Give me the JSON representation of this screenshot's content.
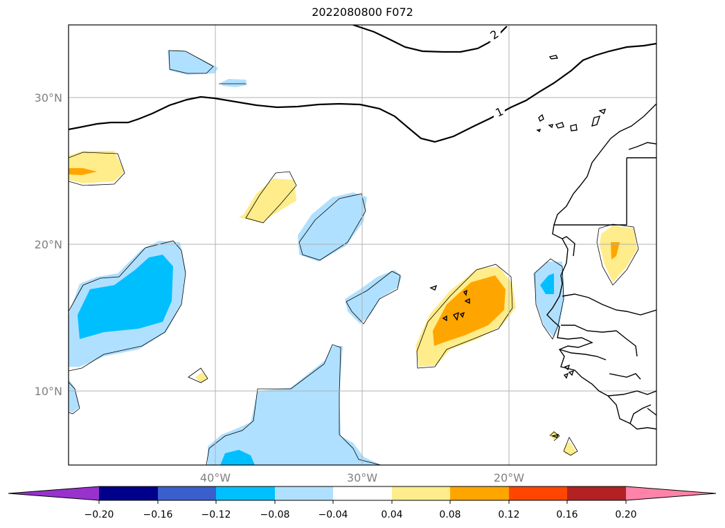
{
  "title": "2022080800 F072",
  "lat_labels": [
    "30°N",
    "20°N",
    "10°N"
  ],
  "lon_labels": [
    "40°W",
    "30°W",
    "20°W"
  ],
  "contour_labels": [
    "2",
    "1"
  ],
  "colorbar": {
    "ticks": [
      "−0.20",
      "−0.16",
      "−0.12",
      "−0.08",
      "−0.04",
      "0.04",
      "0.08",
      "0.12",
      "0.16",
      "0.20"
    ],
    "colors": [
      "#9932cc",
      "#00008b",
      "#3a5fcd",
      "#00bfff",
      "#b0e0ff",
      "#ffffff",
      "#ffec8b",
      "#ffa500",
      "#ff4500",
      "#b22222",
      "#ff83a8"
    ]
  },
  "fill_colors": {
    "light_blue": "#b0e0ff",
    "blue": "#00bfff",
    "light_yellow": "#ffec8b",
    "orange": "#ffa500"
  }
}
